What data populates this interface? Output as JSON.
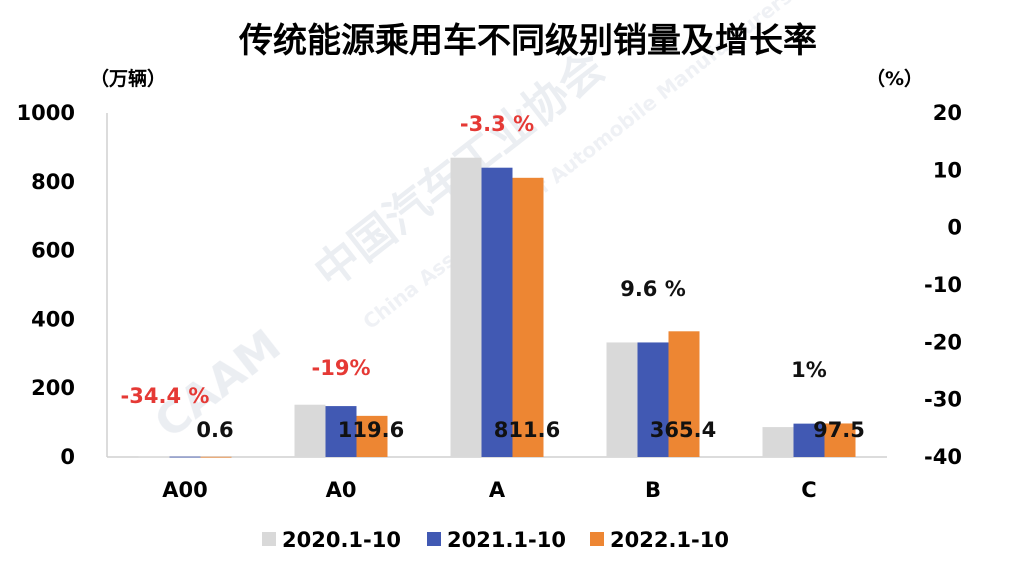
{
  "chart_data": {
    "type": "bar",
    "title": "传统能源乘用车不同级别销量及增长率",
    "left_unit": "（万辆）",
    "right_unit": "（%）",
    "categories": [
      "A00",
      "A0",
      "A",
      "B",
      "C"
    ],
    "series": [
      {
        "name": "2020.1-10",
        "color": "#d9d9d9",
        "values": [
          1.5,
          152,
          870,
          333,
          87
        ]
      },
      {
        "name": "2021.1-10",
        "color": "#4159b3",
        "values": [
          1.0,
          148,
          841,
          333,
          97
        ]
      },
      {
        "name": "2022.1-10",
        "color": "#ed8633",
        "values": [
          0.6,
          119.6,
          811.6,
          365.4,
          97.5
        ]
      }
    ],
    "value_labels": [
      "0.6",
      "119.6",
      "811.6",
      "365.4",
      "97.5"
    ],
    "growth_labels": [
      "-34.4 %",
      "-19%",
      "-3.3 %",
      "9.6 %",
      "1%"
    ],
    "growth_colors": [
      "#e53935",
      "#e53935",
      "#e53935",
      "#111111",
      "#111111"
    ],
    "y_left": {
      "min": 0,
      "max": 1000,
      "ticks": [
        "0",
        "200",
        "400",
        "600",
        "800",
        "1000"
      ]
    },
    "y_right": {
      "min": -40,
      "max": 20,
      "ticks": [
        "-40",
        "-30",
        "-20",
        "-10",
        "0",
        "10",
        "20"
      ]
    },
    "grid": false,
    "legend_position": "bottom"
  },
  "watermark": {
    "text": "中国汽车工业协会",
    "subtext": "China Association of Automobile Manufacturers",
    "logo": "CAAM"
  }
}
